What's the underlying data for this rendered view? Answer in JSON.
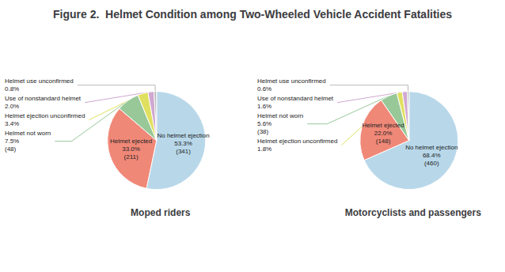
{
  "chart_data": {
    "type": "pie",
    "title": "Figure 2.  Helmet Condition among Two-Wheeled Vehicle Accident Fatalities",
    "categories": [
      "No helmet ejection",
      "Helmet ejected",
      "Helmet not worn",
      "Helmet ejection unconfirmed",
      "Use of nonstandard helmet",
      "Helmet use unconfirmed"
    ],
    "colors": [
      "#b8d8ea",
      "#f08878",
      "#98c898",
      "#e0e060",
      "#d0a8d0",
      "#b8b8b8"
    ],
    "data_labels": true,
    "series": [
      {
        "name": "Moped riders",
        "values": [
          53.3,
          33.0,
          7.5,
          3.4,
          2.0,
          0.8
        ],
        "value_labels": [
          "53.3%",
          "33.0%",
          "7.5%",
          "3.4%",
          "2.0%",
          "0.8%"
        ],
        "counts": [
          341,
          211,
          48,
          null,
          null,
          null
        ]
      },
      {
        "name": "Motorcyclists and passengers",
        "values": [
          68.4,
          22.0,
          5.6,
          1.8,
          1.6,
          0.6
        ],
        "value_labels": [
          "68.4%",
          "22.0%",
          "5.6%",
          "1.8%",
          "1.6%",
          "0.6%"
        ],
        "counts": [
          460,
          148,
          38,
          null,
          null,
          null
        ]
      }
    ]
  }
}
